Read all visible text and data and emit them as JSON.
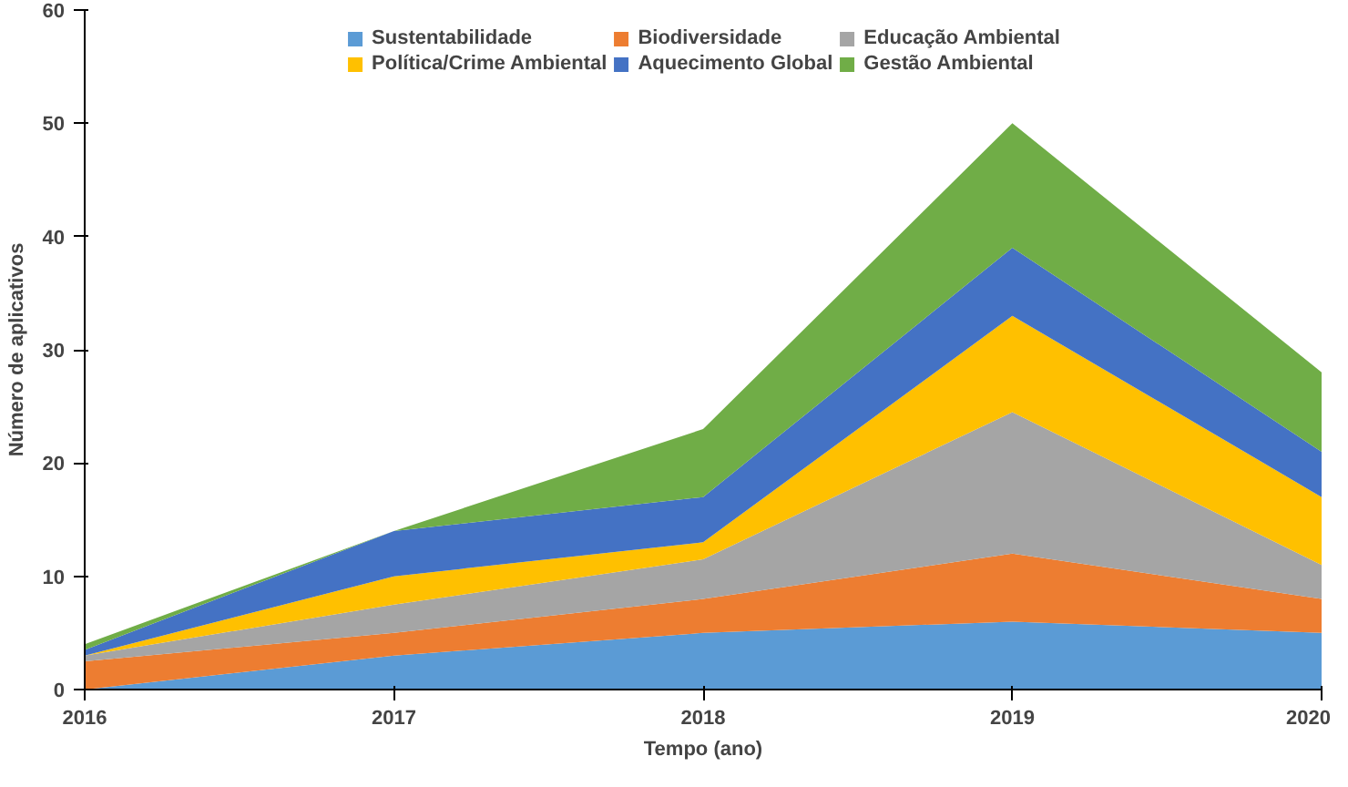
{
  "chart_data": {
    "type": "area",
    "stacked": true,
    "xlabel": "Tempo (ano)",
    "ylabel": "Número de aplicativos",
    "x": [
      2016,
      2017,
      2018,
      2019,
      2020
    ],
    "xlim": [
      2016,
      2020
    ],
    "xticks": [
      2016,
      2017,
      2018,
      2019,
      2020
    ],
    "ylim": [
      0,
      60
    ],
    "yticks": [
      0,
      10,
      20,
      30,
      40,
      50,
      60
    ],
    "grid": false,
    "legend": "top",
    "series": [
      {
        "name": "Sustentabilidade",
        "color": "#5b9bd5",
        "values": [
          0,
          3,
          5,
          6,
          5
        ]
      },
      {
        "name": "Biodiversidade",
        "color": "#ed7d31",
        "values": [
          2.5,
          2,
          3,
          6,
          3
        ]
      },
      {
        "name": "Educação Ambiental",
        "color": "#a5a5a5",
        "values": [
          0.5,
          2.5,
          3.5,
          12.5,
          3
        ]
      },
      {
        "name": "Política/Crime Ambiental",
        "color": "#ffc000",
        "values": [
          0,
          2.5,
          1.5,
          8.5,
          6
        ]
      },
      {
        "name": "Aquecimento Global",
        "color": "#4472c4",
        "values": [
          0.5,
          4,
          4,
          6,
          4
        ]
      },
      {
        "name": "Gestão Ambiental",
        "color": "#70ad47",
        "values": [
          0.5,
          0,
          6,
          11,
          7
        ]
      }
    ]
  }
}
